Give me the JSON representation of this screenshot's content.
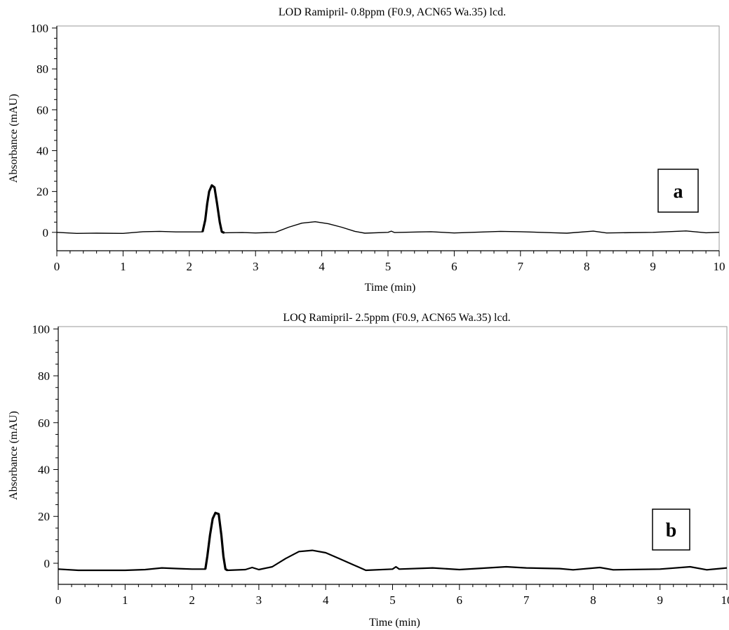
{
  "chart_data": [
    {
      "type": "line",
      "title": "LOD Ramipril- 0.8ppm (F0.9, ACN65 Wa.35) lcd.",
      "xlabel": "Time (min)",
      "ylabel": "Absorbance (mAU)",
      "xlim": [
        0,
        10
      ],
      "ylim": [
        -9,
        101
      ],
      "x_ticks": [
        0,
        1,
        2,
        3,
        4,
        5,
        6,
        7,
        8,
        9,
        10
      ],
      "y_ticks": [
        0,
        20,
        40,
        60,
        80,
        100
      ],
      "grid": false,
      "legend": "none",
      "panel_label": "a",
      "series": [
        {
          "x": [
            0,
            0.3,
            0.6,
            1.0,
            1.3,
            1.55,
            1.8,
            2.0,
            2.2,
            2.24,
            2.27,
            2.3,
            2.34,
            2.38,
            2.42,
            2.46,
            2.49,
            2.51,
            2.53,
            2.8,
            3.0,
            3.3,
            3.5,
            3.7,
            3.9,
            4.1,
            4.3,
            4.5,
            4.65,
            5.0,
            5.05,
            5.1,
            5.5,
            5.65,
            6.0,
            6.7,
            7.0,
            7.5,
            7.7,
            8.1,
            8.3,
            9.0,
            9.5,
            9.8,
            10.0
          ],
          "y": [
            0,
            -0.5,
            -0.4,
            -0.5,
            0.3,
            0.5,
            0.2,
            0.2,
            0.2,
            6,
            14,
            20,
            23,
            22,
            14,
            5,
            0.3,
            0,
            -0.2,
            -0.1,
            -0.3,
            0,
            2.5,
            4.5,
            5.2,
            4.2,
            2.5,
            0.5,
            -0.4,
            0,
            0.6,
            -0.1,
            0.2,
            0.3,
            -0.3,
            0.5,
            0.3,
            -0.2,
            -0.4,
            0.6,
            -0.3,
            0,
            0.7,
            -0.2,
            0
          ]
        }
      ]
    },
    {
      "type": "line",
      "title": "LOQ Ramipril- 2.5ppm (F0.9, ACN65 Wa.35) lcd.",
      "xlabel": "Time (min)",
      "ylabel": "Absorbance (mAU)",
      "xlim": [
        0,
        10
      ],
      "ylim": [
        -9,
        101
      ],
      "x_ticks": [
        0,
        1,
        2,
        3,
        4,
        5,
        6,
        7,
        8,
        9,
        10
      ],
      "y_ticks": [
        0,
        20,
        40,
        60,
        80,
        100
      ],
      "grid": false,
      "legend": "none",
      "panel_label": "b",
      "series": [
        {
          "x": [
            0,
            0.3,
            0.6,
            1.0,
            1.3,
            1.55,
            1.8,
            2.0,
            2.2,
            2.23,
            2.27,
            2.31,
            2.35,
            2.4,
            2.44,
            2.47,
            2.5,
            2.53,
            2.8,
            2.9,
            3.0,
            3.2,
            3.4,
            3.6,
            3.8,
            4.0,
            4.2,
            4.4,
            4.6,
            5.0,
            5.05,
            5.1,
            5.6,
            6.0,
            6.7,
            7.0,
            7.5,
            7.7,
            8.1,
            8.3,
            9.0,
            9.45,
            9.7,
            10.0
          ],
          "y": [
            -2.5,
            -3,
            -3,
            -3,
            -2.7,
            -2,
            -2.3,
            -2.5,
            -2.5,
            3,
            12,
            19,
            21.5,
            21,
            12,
            3,
            -2.5,
            -3,
            -2.7,
            -1.8,
            -2.7,
            -1.5,
            2,
            5,
            5.5,
            4.5,
            2,
            -0.5,
            -3,
            -2.5,
            -1.5,
            -2.5,
            -2,
            -2.7,
            -1.5,
            -2,
            -2.3,
            -2.8,
            -1.8,
            -2.8,
            -2.5,
            -1.5,
            -2.8,
            -2
          ]
        }
      ]
    }
  ]
}
